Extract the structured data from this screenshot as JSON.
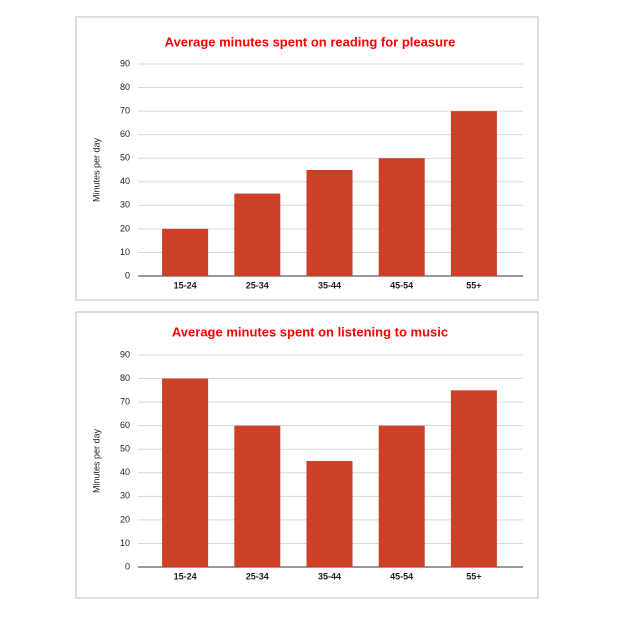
{
  "chart_data": [
    {
      "type": "bar",
      "title": "Average minutes spent on reading for pleasure",
      "y_label": "Minutes per day",
      "categories": [
        "15-24",
        "25-34",
        "35-44",
        "45-54",
        "55+"
      ],
      "values": [
        20,
        35,
        45,
        50,
        70
      ],
      "color": "#cc4125",
      "ylim": [
        0,
        90
      ],
      "yticks": [
        0,
        10,
        20,
        30,
        40,
        50,
        60,
        70,
        80,
        90
      ],
      "grid": true
    },
    {
      "type": "bar",
      "title": "Average minutes spent on listening to music",
      "y_label": "Minutes per day",
      "categories": [
        "15-24",
        "25-34",
        "35-44",
        "45-54",
        "55+"
      ],
      "values": [
        80,
        60,
        45,
        60,
        75
      ],
      "color": "#cc4125",
      "ylim": [
        0,
        90
      ],
      "yticks": [
        0,
        10,
        20,
        30,
        40,
        50,
        60,
        70,
        80,
        90
      ],
      "grid": true
    }
  ]
}
